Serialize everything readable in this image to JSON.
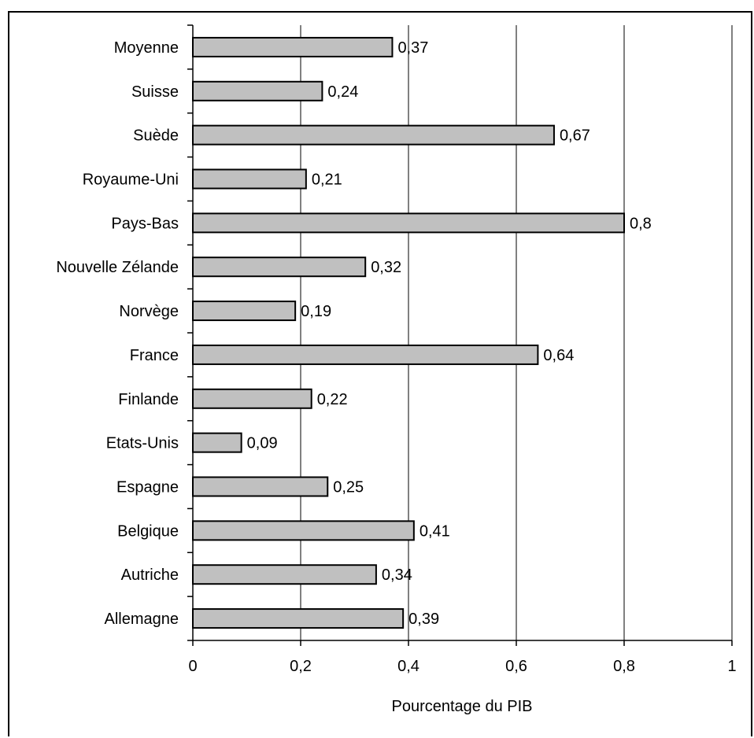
{
  "chart_data": {
    "type": "bar",
    "orientation": "horizontal",
    "categories": [
      "Moyenne",
      "Suisse",
      "Suède",
      "Royaume-Uni",
      "Pays-Bas",
      "Nouvelle Zélande",
      "Norvège",
      "France",
      "Finlande",
      "Etats-Unis",
      "Espagne",
      "Belgique",
      "Autriche",
      "Allemagne"
    ],
    "values": [
      0.37,
      0.24,
      0.67,
      0.21,
      0.8,
      0.32,
      0.19,
      0.64,
      0.22,
      0.09,
      0.25,
      0.41,
      0.34,
      0.39
    ],
    "value_labels": [
      "0,37",
      "0,24",
      "0,67",
      "0,21",
      "0,8",
      "0,32",
      "0,19",
      "0,64",
      "0,22",
      "0,09",
      "0,25",
      "0,41",
      "0,34",
      "0,39"
    ],
    "xlabel": "Pourcentage du PIB",
    "ylabel": "",
    "title": "",
    "xlim": [
      0,
      1
    ],
    "x_ticks": [
      0,
      0.2,
      0.4,
      0.6,
      0.8,
      1
    ],
    "x_tick_labels": [
      "0",
      "0,2",
      "0,4",
      "0,6",
      "0,8",
      "1"
    ],
    "grid": "vertical",
    "legend": "none",
    "colors": {
      "bar_fill": "#c0c0c0",
      "bar_stroke": "#000000",
      "grid": "#000000"
    }
  }
}
